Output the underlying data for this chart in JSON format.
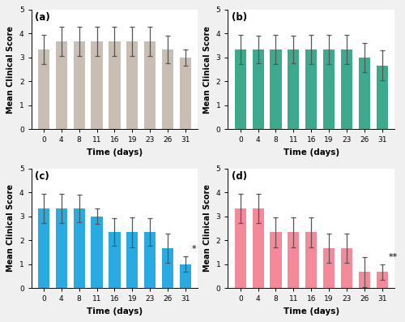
{
  "time_labels": [
    "0",
    "4",
    "8",
    "11",
    "16",
    "19",
    "23",
    "26",
    "31"
  ],
  "subplots": [
    {
      "label": "(a)",
      "color": "#C8BEB4",
      "values": [
        3.33,
        3.67,
        3.67,
        3.67,
        3.67,
        3.67,
        3.67,
        3.33,
        3.0
      ],
      "errors": [
        0.62,
        0.62,
        0.62,
        0.62,
        0.62,
        0.62,
        0.62,
        0.58,
        0.33
      ],
      "annotation": null
    },
    {
      "label": "(b)",
      "color": "#3DAA8E",
      "values": [
        3.33,
        3.33,
        3.33,
        3.33,
        3.33,
        3.33,
        3.33,
        3.0,
        2.67
      ],
      "errors": [
        0.62,
        0.58,
        0.62,
        0.58,
        0.62,
        0.62,
        0.62,
        0.62,
        0.62
      ],
      "annotation": null
    },
    {
      "label": "(c)",
      "color": "#29ABE2",
      "values": [
        3.33,
        3.33,
        3.33,
        3.0,
        2.33,
        2.33,
        2.33,
        1.67,
        1.0
      ],
      "errors": [
        0.62,
        0.62,
        0.58,
        0.33,
        0.58,
        0.62,
        0.58,
        0.62,
        0.33
      ],
      "annotation": "*"
    },
    {
      "label": "(d)",
      "color": "#F4899A",
      "values": [
        3.33,
        3.33,
        2.33,
        2.33,
        2.33,
        1.67,
        1.67,
        0.67,
        0.67
      ],
      "errors": [
        0.62,
        0.62,
        0.62,
        0.62,
        0.62,
        0.62,
        0.62,
        0.62,
        0.33
      ],
      "annotation": "**"
    }
  ],
  "ylabel": "Mean Clinical Score",
  "xlabel": "Time (days)",
  "ylim": [
    0,
    5
  ],
  "yticks": [
    0,
    1,
    2,
    3,
    4,
    5
  ],
  "fig_bg": "#F0F0F0",
  "plot_bg": "#FFFFFF"
}
